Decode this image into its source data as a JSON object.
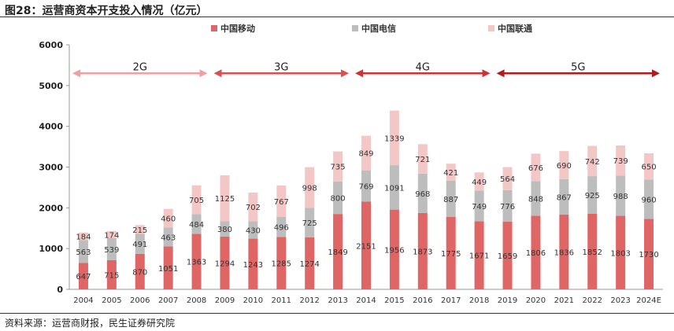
{
  "figure": {
    "title": "图28：运营商资本开支投入情况（亿元）",
    "source": "资料来源：运营商财报，民生证券研究院"
  },
  "chart_data": {
    "type": "bar",
    "stacked": true,
    "categories": [
      "2004",
      "2005",
      "2006",
      "2007",
      "2008",
      "2009",
      "2010",
      "2011",
      "2012",
      "2013",
      "2014",
      "2015",
      "2016",
      "2017",
      "2018",
      "2019",
      "2020",
      "2021",
      "2022",
      "2023",
      "2024E"
    ],
    "series": [
      {
        "name": "中国移动",
        "color": "#e06666",
        "values": [
          647,
          715,
          870,
          1051,
          1363,
          1294,
          1243,
          1285,
          1274,
          1849,
          2151,
          1956,
          1873,
          1775,
          1671,
          1659,
          1806,
          1836,
          1852,
          1803,
          1730
        ]
      },
      {
        "name": "中国电信",
        "color": "#bdbdbd",
        "values": [
          563,
          539,
          491,
          463,
          484,
          380,
          430,
          496,
          725,
          800,
          769,
          1091,
          968,
          887,
          749,
          776,
          848,
          867,
          925,
          988,
          960
        ]
      },
      {
        "name": "中国联通",
        "color": "#f4c7c7",
        "values": [
          184,
          174,
          215,
          460,
          705,
          1125,
          702,
          767,
          998,
          735,
          849,
          1339,
          721,
          421,
          449,
          564,
          676,
          690,
          742,
          739,
          650
        ]
      }
    ],
    "ylim": [
      0,
      6000
    ],
    "yticks": [
      0,
      1000,
      2000,
      3000,
      4000,
      5000,
      6000
    ],
    "grid": false,
    "legend_position": "top",
    "eras": [
      {
        "label": "2G",
        "from": "2004",
        "to": "2008",
        "color": "#f0a0a0"
      },
      {
        "label": "3G",
        "from": "2009",
        "to": "2013",
        "color": "#d95050"
      },
      {
        "label": "4G",
        "from": "2014",
        "to": "2018",
        "color": "#cc3333"
      },
      {
        "label": "5G",
        "from": "2019",
        "to": "2024E",
        "color": "#b01c1c"
      }
    ],
    "era_y": 5300
  }
}
